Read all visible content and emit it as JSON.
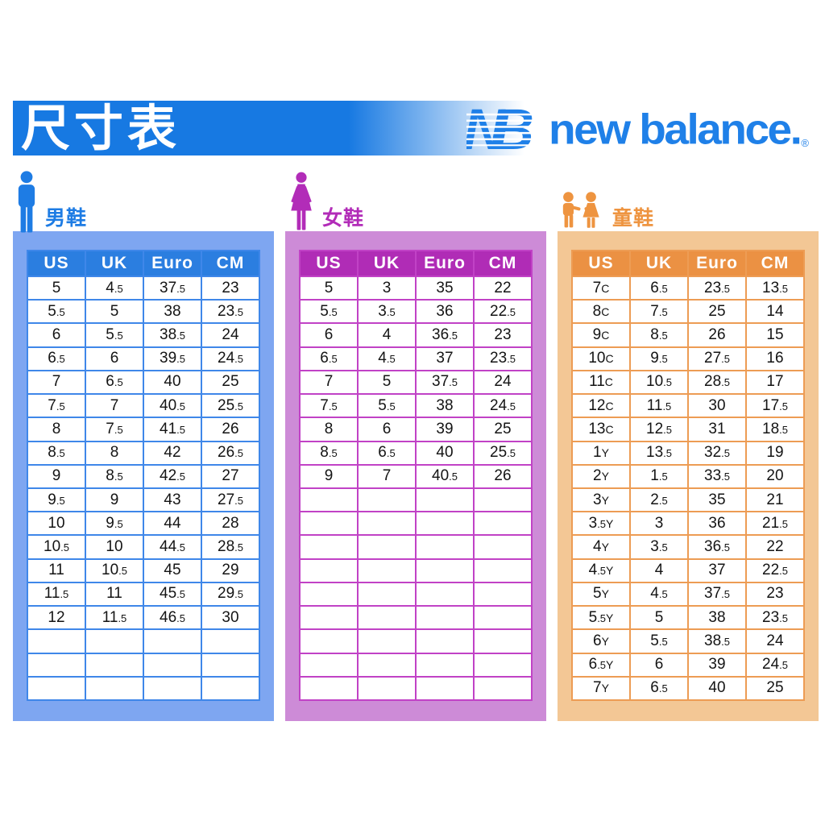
{
  "page": {
    "title": "尺寸表",
    "brand": {
      "name": "new balance.",
      "registered": "®"
    },
    "colors": {
      "banner_blue": "#1779E2",
      "logo_blue": "#1F80E8",
      "background": "#FFFFFF"
    }
  },
  "tables": [
    {
      "id": "men",
      "label": "男鞋",
      "icon": "man-icon",
      "colors": {
        "accent": "#1E7CE4",
        "panel": "#7EA6F1",
        "header": "#2B7EE0",
        "border": "#3F87E9"
      },
      "columns": [
        "US",
        "UK",
        "Euro",
        "CM"
      ],
      "rows": [
        [
          "5",
          "4.5",
          "37.5",
          "23"
        ],
        [
          "5.5",
          "5",
          "38",
          "23.5"
        ],
        [
          "6",
          "5.5",
          "38.5",
          "24"
        ],
        [
          "6.5",
          "6",
          "39.5",
          "24.5"
        ],
        [
          "7",
          "6.5",
          "40",
          "25"
        ],
        [
          "7.5",
          "7",
          "40.5",
          "25.5"
        ],
        [
          "8",
          "7.5",
          "41.5",
          "26"
        ],
        [
          "8.5",
          "8",
          "42",
          "26.5"
        ],
        [
          "9",
          "8.5",
          "42.5",
          "27"
        ],
        [
          "9.5",
          "9",
          "43",
          "27.5"
        ],
        [
          "10",
          "9.5",
          "44",
          "28"
        ],
        [
          "10.5",
          "10",
          "44.5",
          "28.5"
        ],
        [
          "11",
          "10.5",
          "45",
          "29"
        ],
        [
          "11.5",
          "11",
          "45.5",
          "29.5"
        ],
        [
          "12",
          "11.5",
          "46.5",
          "30"
        ]
      ],
      "empty_rows": 3
    },
    {
      "id": "women",
      "label": "女鞋",
      "icon": "woman-icon",
      "colors": {
        "accent": "#B22CB8",
        "panel": "#CD8BD7",
        "header": "#B02CB6",
        "border": "#C142C6"
      },
      "columns": [
        "US",
        "UK",
        "Euro",
        "CM"
      ],
      "rows": [
        [
          "5",
          "3",
          "35",
          "22"
        ],
        [
          "5.5",
          "3.5",
          "36",
          "22.5"
        ],
        [
          "6",
          "4",
          "36.5",
          "23"
        ],
        [
          "6.5",
          "4.5",
          "37",
          "23.5"
        ],
        [
          "7",
          "5",
          "37.5",
          "24"
        ],
        [
          "7.5",
          "5.5",
          "38",
          "24.5"
        ],
        [
          "8",
          "6",
          "39",
          "25"
        ],
        [
          "8.5",
          "6.5",
          "40",
          "25.5"
        ],
        [
          "9",
          "7",
          "40.5",
          "26"
        ]
      ],
      "empty_rows": 9
    },
    {
      "id": "kids",
      "label": "童鞋",
      "icon": "children-icon",
      "colors": {
        "accent": "#EE9440",
        "panel": "#F3C795",
        "header": "#EB9143",
        "border": "#ED9C54"
      },
      "columns": [
        "US",
        "UK",
        "Euro",
        "CM"
      ],
      "rows": [
        [
          "7C",
          "6.5",
          "23.5",
          "13.5"
        ],
        [
          "8C",
          "7.5",
          "25",
          "14"
        ],
        [
          "9C",
          "8.5",
          "26",
          "15"
        ],
        [
          "10C",
          "9.5",
          "27.5",
          "16"
        ],
        [
          "11C",
          "10.5",
          "28.5",
          "17"
        ],
        [
          "12C",
          "11.5",
          "30",
          "17.5"
        ],
        [
          "13C",
          "12.5",
          "31",
          "18.5"
        ],
        [
          "1Y",
          "13.5",
          "32.5",
          "19"
        ],
        [
          "2Y",
          "1.5",
          "33.5",
          "20"
        ],
        [
          "3Y",
          "2.5",
          "35",
          "21"
        ],
        [
          "3.5Y",
          "3",
          "36",
          "21.5"
        ],
        [
          "4Y",
          "3.5",
          "36.5",
          "22"
        ],
        [
          "4.5Y",
          "4",
          "37",
          "22.5"
        ],
        [
          "5Y",
          "4.5",
          "37.5",
          "23"
        ],
        [
          "5.5Y",
          "5",
          "38",
          "23.5"
        ],
        [
          "6Y",
          "5.5",
          "38.5",
          "24"
        ],
        [
          "6.5Y",
          "6",
          "39",
          "24.5"
        ],
        [
          "7Y",
          "6.5",
          "40",
          "25"
        ]
      ],
      "empty_rows": 0
    }
  ]
}
